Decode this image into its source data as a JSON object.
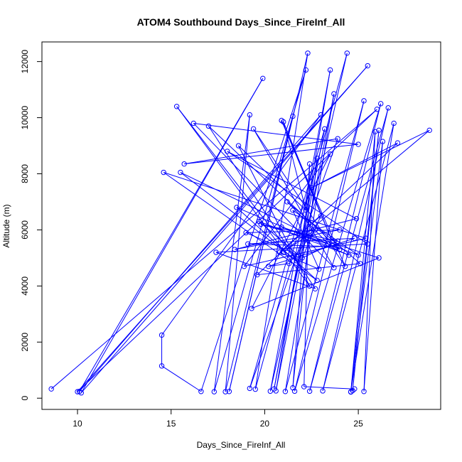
{
  "chart_data": {
    "type": "line",
    "title": "ATOM4 Southbound Days_Since_FireInf_All",
    "xlabel": "Days_Since_FireInf_All",
    "ylabel": "Altitude (m)",
    "xlim": [
      8.1,
      29.4
    ],
    "ylim": [
      -400,
      12700
    ],
    "x_ticks": [
      10,
      15,
      20,
      25
    ],
    "y_ticks": [
      0,
      2000,
      4000,
      6000,
      8000,
      10000,
      12000
    ],
    "grid": false,
    "marker": "open-circle",
    "series_color": "#0000ff",
    "series": [
      {
        "x": [
          8.6,
          26.0,
          10.0,
          25.5,
          10.2,
          19.9,
          10.1,
          23.0,
          14.5,
          14.5,
          16.6,
          22.2,
          17.3,
          19.2,
          17.9,
          21.5,
          18.1,
          22.3,
          19.5,
          24.4,
          20.3,
          23.5,
          20.6,
          23.7,
          21.1,
          25.3,
          21.6,
          26.2,
          22.4,
          26.6,
          23.1,
          26.9,
          24.6,
          25.9,
          25.3,
          26.3,
          24.6,
          26.1,
          24.7,
          24.8,
          22.1,
          22.4,
          21.5,
          22.8,
          20.5,
          23.2,
          19.2,
          23.9,
          15.7,
          25.0,
          16.2,
          23.7,
          19.4,
          24.3,
          20.9,
          23.6,
          21.0,
          22.2,
          18.6,
          22.4,
          15.3,
          21.7,
          15.5,
          24.0,
          17.0,
          22.7,
          17.4,
          25.5,
          18.0,
          24.9,
          18.4,
          24.0,
          19.0,
          21.8,
          19.7,
          24.5,
          18.5,
          22.8,
          14.6,
          25.4,
          18.9,
          23.5,
          19.3,
          26.1,
          20.9,
          25.0,
          21.5,
          22.9,
          20.8,
          23.0,
          22.0,
          23.9,
          19.8,
          23.4,
          21.2,
          25.1,
          19.6,
          27.1,
          22.5,
          28.8,
          21.0,
          22.7,
          21.3,
          20.2,
          24.8,
          19.1,
          23.8
        ],
        "y": [
          330,
          10300,
          230,
          11850,
          190,
          11400,
          240,
          10100,
          2250,
          1150,
          240,
          11700,
          230,
          10100,
          230,
          10050,
          240,
          12300,
          320,
          12300,
          250,
          11700,
          260,
          10850,
          240,
          10600,
          250,
          10500,
          250,
          10350,
          260,
          9800,
          230,
          9500,
          240,
          9150,
          220,
          9550,
          270,
          330,
          410,
          8350,
          370,
          8550,
          330,
          9600,
          350,
          9250,
          8350,
          9050,
          9800,
          4650,
          9600,
          4700,
          9900,
          5600,
          9850,
          6700,
          9000,
          4000,
          10400,
          4900,
          8050,
          5300,
          9700,
          3900,
          5200,
          5500,
          8800,
          6400,
          5300,
          6000,
          5900,
          5100,
          6300,
          5100,
          6800,
          4200,
          8050,
          5700,
          4700,
          8700,
          3200,
          5000,
          6100,
          5100,
          6700,
          4600,
          5200,
          6500,
          5000,
          5600,
          6200,
          5500,
          7000,
          4800,
          4400,
          9100,
          7500,
          9550,
          5200,
          6000,
          4800,
          4700,
          5700,
          5500,
          5400
        ]
      }
    ]
  }
}
